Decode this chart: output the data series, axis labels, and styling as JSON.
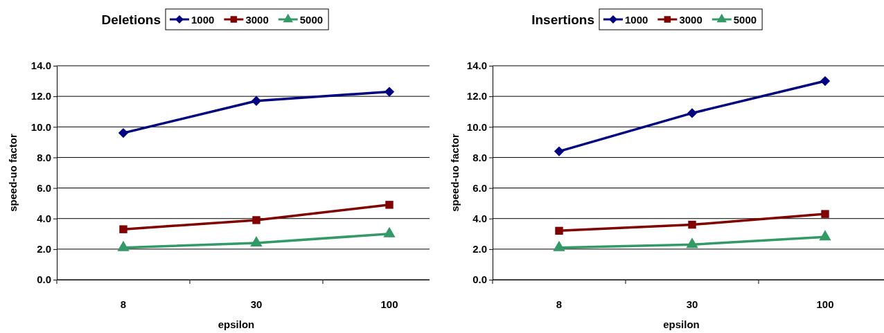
{
  "chart_data": [
    {
      "type": "line",
      "title": "Deletions",
      "xlabel": "epsilon",
      "ylabel": "speed-uo factor",
      "categories": [
        "8",
        "30",
        "100"
      ],
      "ylim": [
        0,
        14
      ],
      "yticks": [
        {
          "value": 0,
          "label": "0.0"
        },
        {
          "value": 2,
          "label": "2.0"
        },
        {
          "value": 4,
          "label": "4.0"
        },
        {
          "value": 6,
          "label": "6.0"
        },
        {
          "value": 8,
          "label": "8.0"
        },
        {
          "value": 10,
          "label": "10.0"
        },
        {
          "value": 12,
          "label": "12.0"
        },
        {
          "value": 14,
          "label": "14.0"
        }
      ],
      "grid": "y",
      "legend": "top",
      "series": [
        {
          "name": "1000",
          "color": "#000080",
          "marker": "diamond",
          "values": [
            9.6,
            11.7,
            12.3
          ]
        },
        {
          "name": "3000",
          "color": "#800000",
          "marker": "square",
          "values": [
            3.3,
            3.9,
            4.9
          ]
        },
        {
          "name": "5000",
          "color": "#339966",
          "marker": "triangle",
          "values": [
            2.1,
            2.4,
            3.0
          ]
        }
      ]
    },
    {
      "type": "line",
      "title": "Insertions",
      "xlabel": "epsilon",
      "ylabel": "speed-uo factor",
      "categories": [
        "8",
        "30",
        "100"
      ],
      "ylim": [
        0,
        14
      ],
      "yticks": [
        {
          "value": 0,
          "label": "0.0"
        },
        {
          "value": 2,
          "label": "2.0"
        },
        {
          "value": 4,
          "label": "4.0"
        },
        {
          "value": 6,
          "label": "6.0"
        },
        {
          "value": 8,
          "label": "8.0"
        },
        {
          "value": 10,
          "label": "10.0"
        },
        {
          "value": 12,
          "label": "12.0"
        },
        {
          "value": 14,
          "label": "14.0"
        }
      ],
      "grid": "y",
      "legend": "top",
      "series": [
        {
          "name": "1000",
          "color": "#000080",
          "marker": "diamond",
          "values": [
            8.4,
            10.9,
            13.0
          ]
        },
        {
          "name": "3000",
          "color": "#800000",
          "marker": "square",
          "values": [
            3.2,
            3.6,
            4.3
          ]
        },
        {
          "name": "5000",
          "color": "#339966",
          "marker": "triangle",
          "values": [
            2.1,
            2.3,
            2.8
          ]
        }
      ]
    }
  ]
}
